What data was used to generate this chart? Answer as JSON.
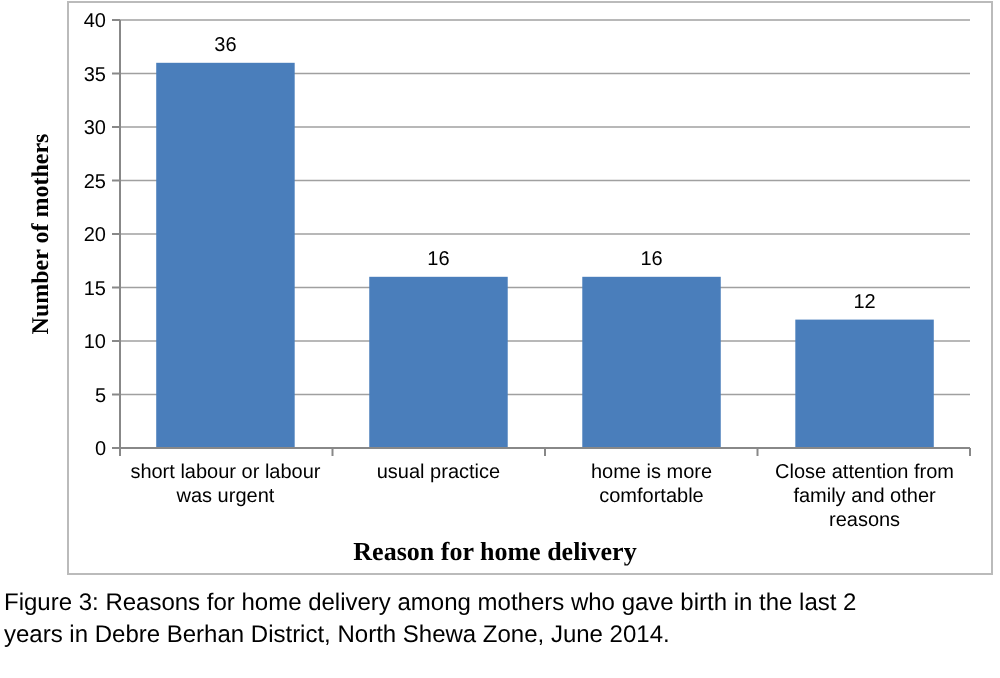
{
  "chart_data": {
    "type": "bar",
    "categories": [
      "short labour or labour was urgent",
      "usual practice",
      "home is more comfortable",
      "Close attention from family and other reasons"
    ],
    "values": [
      36,
      16,
      16,
      12
    ],
    "color": "#4a7ebb",
    "data_labels": true,
    "ylim": [
      0,
      40
    ],
    "yticks": [
      0,
      5,
      10,
      15,
      20,
      25,
      30,
      35,
      40
    ],
    "grid": "y",
    "xlabel": "Reason for home delivery",
    "ylabel": "Number of mothers",
    "annotations": [
      "Figure 3: Reasons for home delivery among mothers who gave birth in the last 2 years in Debre Berhan District, North Shewa Zone, June 2014."
    ]
  }
}
